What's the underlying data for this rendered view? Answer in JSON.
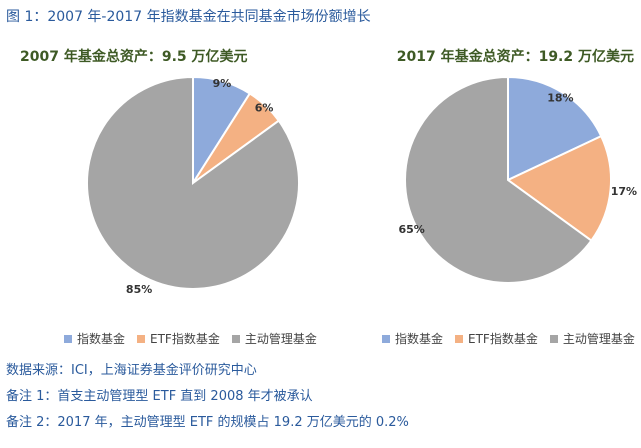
{
  "figure_title": "图 1：2007 年-2017 年指数基金在共同基金市场份额增长",
  "colors": {
    "index": "#8eaadb",
    "etf": "#f4b183",
    "active": "#a5a5a5"
  },
  "legend": [
    "指数基金",
    "ETF指数基金",
    "主动管理基金"
  ],
  "chart_data": [
    {
      "type": "pie",
      "title": "2007 年基金总资产：9.5 万亿美元",
      "categories": [
        "指数基金",
        "ETF指数基金",
        "主动管理基金"
      ],
      "values": [
        9,
        6,
        85
      ],
      "labels": [
        "9%",
        "6%",
        "85%"
      ],
      "legend_position": "bottom"
    },
    {
      "type": "pie",
      "title": "2017 年基金总资产：19.2 万亿美元",
      "categories": [
        "指数基金",
        "ETF指数基金",
        "主动管理基金"
      ],
      "values": [
        18,
        17,
        65
      ],
      "labels": [
        "18%",
        "17%",
        "65%"
      ],
      "legend_position": "bottom"
    }
  ],
  "notes": {
    "source": "数据来源：ICI，上海证券基金评价研究中心",
    "note1": "备注 1：首支主动管理型 ETF 直到 2008 年才被承认",
    "note2": "备注 2：2017 年，主动管理型 ETF 的规模占 19.2 万亿美元的 0.2%"
  }
}
